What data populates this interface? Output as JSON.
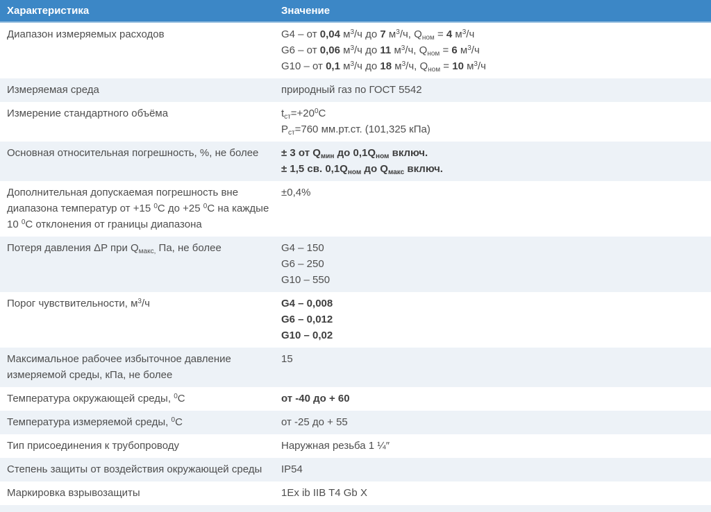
{
  "theme": {
    "header_bg": "#3c87c6",
    "header_text": "#ffffff",
    "header_border": "#9fc4e2",
    "row_alt_bg": "#edf2f7",
    "text": "#4e4e4e",
    "bold_text": "#3f3f3f"
  },
  "table": {
    "columns": [
      {
        "label": "Характеристика"
      },
      {
        "label": "Значение"
      }
    ],
    "rows": [
      {
        "label": [
          [
            {
              "t": "Диапазон измеряемых расходов"
            }
          ]
        ],
        "value": [
          [
            {
              "t": "G4 – от "
            },
            {
              "t": "0,04",
              "b": true
            },
            {
              "t": " м"
            },
            {
              "t": "3",
              "sup": true
            },
            {
              "t": "/ч до "
            },
            {
              "t": "7",
              "b": true
            },
            {
              "t": " м"
            },
            {
              "t": "3",
              "sup": true
            },
            {
              "t": "/ч, Q"
            },
            {
              "t": "ном",
              "sub": true
            },
            {
              "t": " = "
            },
            {
              "t": "4",
              "b": true
            },
            {
              "t": " м"
            },
            {
              "t": "3",
              "sup": true
            },
            {
              "t": "/ч"
            }
          ],
          [
            {
              "t": "G6 – от "
            },
            {
              "t": "0,06",
              "b": true
            },
            {
              "t": " м"
            },
            {
              "t": "3",
              "sup": true
            },
            {
              "t": "/ч до "
            },
            {
              "t": "11",
              "b": true
            },
            {
              "t": " м"
            },
            {
              "t": "3",
              "sup": true
            },
            {
              "t": "/ч, Q"
            },
            {
              "t": "ном",
              "sub": true
            },
            {
              "t": " = "
            },
            {
              "t": "6",
              "b": true
            },
            {
              "t": " м"
            },
            {
              "t": "3",
              "sup": true
            },
            {
              "t": "/ч"
            }
          ],
          [
            {
              "t": "G10 – от "
            },
            {
              "t": "0,1",
              "b": true
            },
            {
              "t": " м"
            },
            {
              "t": "3",
              "sup": true
            },
            {
              "t": "/ч до "
            },
            {
              "t": "18",
              "b": true
            },
            {
              "t": " м"
            },
            {
              "t": "3",
              "sup": true
            },
            {
              "t": "/ч, Q"
            },
            {
              "t": "ном",
              "sub": true
            },
            {
              "t": " = "
            },
            {
              "t": "10",
              "b": true
            },
            {
              "t": " м"
            },
            {
              "t": "3",
              "sup": true
            },
            {
              "t": "/ч"
            }
          ]
        ]
      },
      {
        "label": [
          [
            {
              "t": "Измеряемая среда"
            }
          ]
        ],
        "value": [
          [
            {
              "t": "природный газ по ГОСТ 5542"
            }
          ]
        ]
      },
      {
        "label": [
          [
            {
              "t": "Измерение стандартного объёма"
            }
          ]
        ],
        "value": [
          [
            {
              "t": "t"
            },
            {
              "t": "ст",
              "sub": true
            },
            {
              "t": "=+20"
            },
            {
              "t": "0",
              "sup": true
            },
            {
              "t": "С"
            }
          ],
          [
            {
              "t": "Р"
            },
            {
              "t": "ст",
              "sub": true
            },
            {
              "t": "=760 мм.рт.ст. (101,325 кПа)"
            }
          ]
        ]
      },
      {
        "label": [
          [
            {
              "t": "Основная относительная погрешность, %, не более"
            }
          ]
        ],
        "value": [
          [
            {
              "t": "± 3 от Q",
              "b": true
            },
            {
              "t": "мин",
              "b": true,
              "sub": true
            },
            {
              "t": " до 0,1Q",
              "b": true
            },
            {
              "t": "ном",
              "b": true,
              "sub": true
            },
            {
              "t": " включ.",
              "b": true
            }
          ],
          [
            {
              "t": "± 1,5 св. 0,1Q",
              "b": true
            },
            {
              "t": "ном",
              "b": true,
              "sub": true
            },
            {
              "t": " до Q",
              "b": true
            },
            {
              "t": "макс",
              "b": true,
              "sub": true
            },
            {
              "t": " включ.",
              "b": true
            }
          ]
        ]
      },
      {
        "label": [
          [
            {
              "t": "Дополнительная допускаемая погрешность вне диапазона температур от +15 "
            },
            {
              "t": "0",
              "sup": true
            },
            {
              "t": "С до +25 "
            },
            {
              "t": "0",
              "sup": true
            },
            {
              "t": "С на каждые 10 "
            },
            {
              "t": "0",
              "sup": true
            },
            {
              "t": "С отклонения от границы диапазона"
            }
          ]
        ],
        "value": [
          [
            {
              "t": "±0,4%"
            }
          ]
        ]
      },
      {
        "label": [
          [
            {
              "t": "Потеря давления ΔP при Q"
            },
            {
              "t": "макс,",
              "sub": true
            },
            {
              "t": " Па, не более"
            }
          ]
        ],
        "value": [
          [
            {
              "t": "G4 – 150"
            }
          ],
          [
            {
              "t": "G6 – 250"
            }
          ],
          [
            {
              "t": "G10 – 550"
            }
          ]
        ]
      },
      {
        "label": [
          [
            {
              "t": "Порог чувствительности, м"
            },
            {
              "t": "3",
              "sup": true
            },
            {
              "t": "/ч"
            }
          ]
        ],
        "value": [
          [
            {
              "t": "G4 – 0,008",
              "b": true
            }
          ],
          [
            {
              "t": "G6 – 0,012",
              "b": true
            }
          ],
          [
            {
              "t": "G10 – 0,02",
              "b": true
            }
          ]
        ]
      },
      {
        "label": [
          [
            {
              "t": "Максимальное рабочее избыточное давление измеряемой среды, кПа, не более"
            }
          ]
        ],
        "value": [
          [
            {
              "t": "15"
            }
          ]
        ]
      },
      {
        "label": [
          [
            {
              "t": "Температура окружающей среды, "
            },
            {
              "t": "0",
              "sup": true
            },
            {
              "t": "С"
            }
          ]
        ],
        "value": [
          [
            {
              "t": "от -40 до + 60",
              "b": true
            }
          ]
        ]
      },
      {
        "label": [
          [
            {
              "t": "Температура измеряемой среды, "
            },
            {
              "t": "0",
              "sup": true
            },
            {
              "t": "С"
            }
          ]
        ],
        "value": [
          [
            {
              "t": "от -25 до + 55"
            }
          ]
        ]
      },
      {
        "label": [
          [
            {
              "t": "Тип присоединения к трубопроводу"
            }
          ]
        ],
        "value": [
          [
            {
              "t": "Наружная резьба 1 ¼″"
            }
          ]
        ]
      },
      {
        "label": [
          [
            {
              "t": "Степень защиты от воздействия окружающей среды"
            }
          ]
        ],
        "value": [
          [
            {
              "t": "IP54"
            }
          ]
        ]
      },
      {
        "label": [
          [
            {
              "t": "Маркировка взрывозащиты"
            }
          ]
        ],
        "value": [
          [
            {
              "t": "1Ex ib IIB T4 Gb X"
            }
          ]
        ]
      }
    ]
  }
}
